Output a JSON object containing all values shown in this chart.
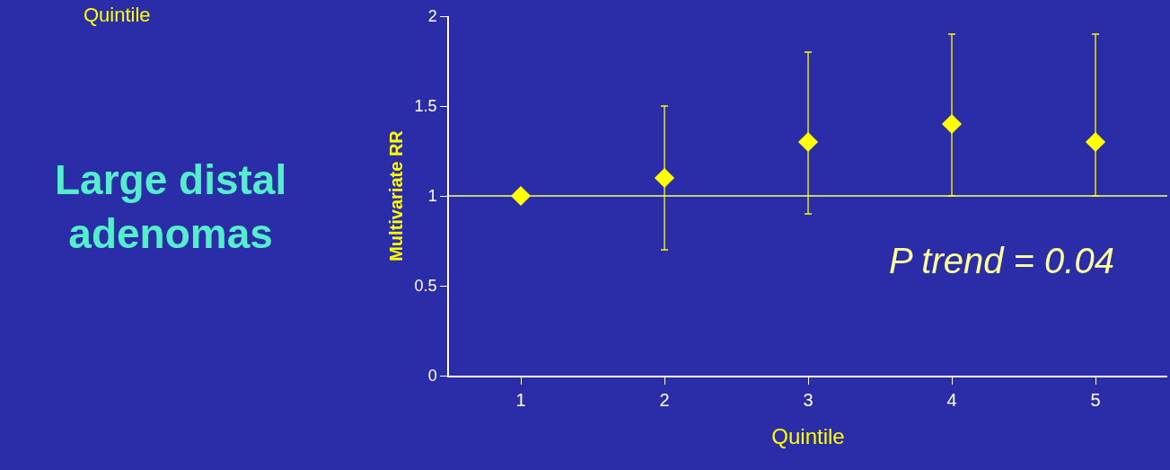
{
  "chart_data": {
    "type": "scatter",
    "categories": [
      "1",
      "2",
      "3",
      "4",
      "5"
    ],
    "series": [
      {
        "color": "#ffff00",
        "values": [
          1.0,
          1.1,
          1.3,
          1.4,
          1.3
        ],
        "errors": [
          null,
          [
            0.7,
            1.5
          ],
          [
            0.9,
            1.8
          ],
          [
            1.0,
            1.9
          ],
          [
            1.0,
            1.9
          ]
        ]
      }
    ],
    "marker": "diamond",
    "ylim": [
      0,
      2
    ],
    "yticks": [
      0,
      0.5,
      1,
      1.5,
      2
    ],
    "xlabel": "Quintile",
    "ylabel": "Multivariate RR",
    "ref_lines": [
      {
        "axis": "y",
        "value": 1,
        "color": "#ffff66"
      }
    ],
    "annotations": [
      "Quintile",
      "Large distal\nadenomas",
      "P trend = 0.04"
    ],
    "grid": false,
    "legend": false
  }
}
